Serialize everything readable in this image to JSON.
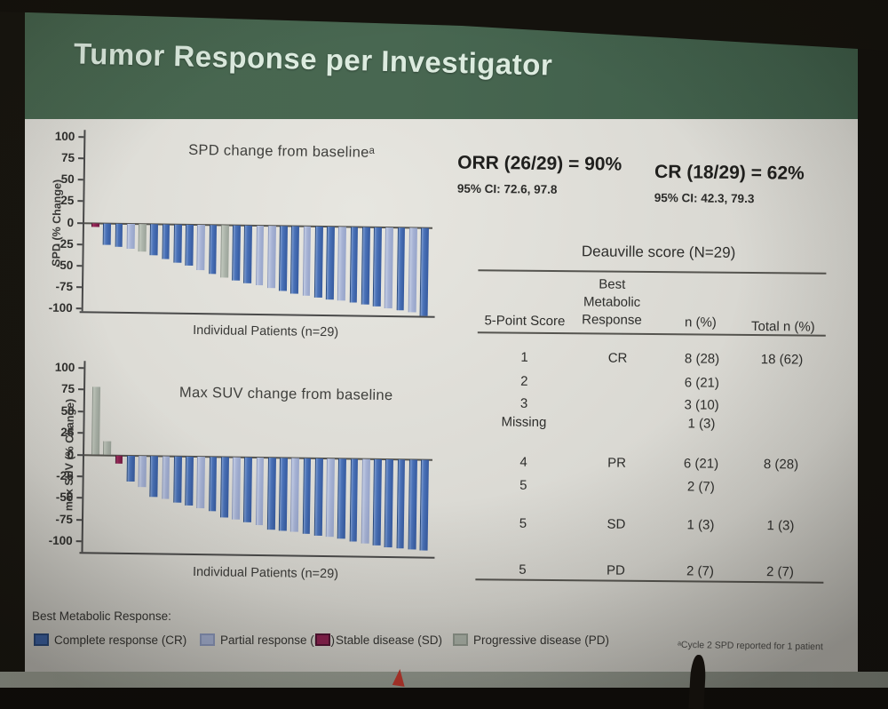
{
  "slide_title": "Tumor Response per Investigator",
  "stats": {
    "orr": "ORR  (26/29) = 90%",
    "orr_ci": "95% CI: 72.6, 97.8",
    "cr": "CR (18/29) = 62%",
    "cr_ci": "95% CI: 42.3, 79.3"
  },
  "deauville_table": {
    "title": "Deauville score (N=29)",
    "col_headers": {
      "score": "5-Point Score",
      "response_lines": [
        "Best",
        "Metabolic",
        "Response"
      ],
      "n": "n (%)",
      "total": "Total n (%)"
    },
    "groups": [
      {
        "rows": [
          [
            "1",
            "CR",
            "8 (28)",
            "18 (62)"
          ],
          [
            "2",
            "",
            "6 (21)",
            ""
          ],
          [
            "3",
            "",
            "3 (10)",
            ""
          ],
          [
            "Missing",
            "",
            "1 (3)",
            ""
          ]
        ]
      },
      {
        "rows": [
          [
            "4",
            "PR",
            "6 (21)",
            "8 (28)"
          ],
          [
            "5",
            "",
            "2 (7)",
            ""
          ]
        ]
      },
      {
        "rows": [
          [
            "5",
            "SD",
            "1 (3)",
            "1 (3)"
          ]
        ]
      },
      {
        "rows": [
          [
            "5",
            "PD",
            "2 (7)",
            "2 (7)"
          ]
        ]
      }
    ]
  },
  "legend": {
    "title": "Best Metabolic Response:",
    "items": [
      {
        "code": "CR",
        "label": "Complete response (CR)"
      },
      {
        "code": "PR",
        "label": "Partial response (PR)"
      },
      {
        "code": "SD",
        "label": "Stable disease (SD)"
      },
      {
        "code": "PD",
        "label": "Progressive disease (PD)"
      }
    ]
  },
  "footnote": "ᵃCycle 2 SPD reported for 1 patient",
  "colors": {
    "CR": "#3c64ab",
    "PR": "#a6b2d4",
    "SD": "#8c2050",
    "PD": "#abb3a9",
    "banner": "#46654e",
    "axis": "#4a4a4a"
  },
  "chart_data": [
    {
      "type": "bar",
      "title": "SPD change from baselineᵃ",
      "xlabel": "Individual Patients (n=29)",
      "ylabel": "SPD (% Change)",
      "ylim": [
        -100,
        100
      ],
      "yticks": [
        100,
        75,
        50,
        25,
        0,
        -25,
        -50,
        -75,
        -100
      ],
      "grid": false,
      "legend_position": "bottom-shared",
      "n": 29,
      "values": [
        -5,
        -25,
        -27,
        -30,
        -33,
        -37,
        -41,
        -45,
        -48,
        -53,
        -58,
        -62,
        -65,
        -68,
        -70,
        -73,
        -76,
        -79,
        -81,
        -83,
        -85,
        -87,
        -89,
        -91,
        -93,
        -95,
        -97,
        -99,
        -103
      ],
      "responses": [
        "SD",
        "CR",
        "CR",
        "PR",
        "PD",
        "CR",
        "CR",
        "CR",
        "CR",
        "PR",
        "CR",
        "PD",
        "CR",
        "CR",
        "PR",
        "PR",
        "CR",
        "CR",
        "PR",
        "CR",
        "CR",
        "PR",
        "CR",
        "CR",
        "CR",
        "PR",
        "CR",
        "PR",
        "CR"
      ]
    },
    {
      "type": "bar",
      "title": "Max SUV change from baseline",
      "xlabel": "Individual Patients (n=29)",
      "ylabel": "max SUV (% Change)",
      "ylim": [
        -100,
        100
      ],
      "yticks": [
        100,
        75,
        50,
        25,
        0,
        -25,
        -50,
        -75,
        -100
      ],
      "grid": false,
      "legend_position": "bottom-shared",
      "n": 29,
      "values": [
        78,
        16,
        -10,
        -30,
        -36,
        -48,
        -50,
        -54,
        -57,
        -60,
        -63,
        -70,
        -72,
        -75,
        -78,
        -84,
        -85,
        -86,
        -88,
        -90,
        -91,
        -93,
        -96,
        -98,
        -100,
        -102,
        -103,
        -104,
        -105
      ],
      "responses": [
        "PD",
        "PD",
        "SD",
        "CR",
        "PR",
        "CR",
        "PR",
        "CR",
        "CR",
        "PR",
        "CR",
        "CR",
        "PR",
        "CR",
        "PR",
        "CR",
        "CR",
        "PR",
        "CR",
        "CR",
        "PR",
        "CR",
        "CR",
        "PR",
        "CR",
        "CR",
        "CR",
        "CR",
        "CR"
      ]
    }
  ]
}
